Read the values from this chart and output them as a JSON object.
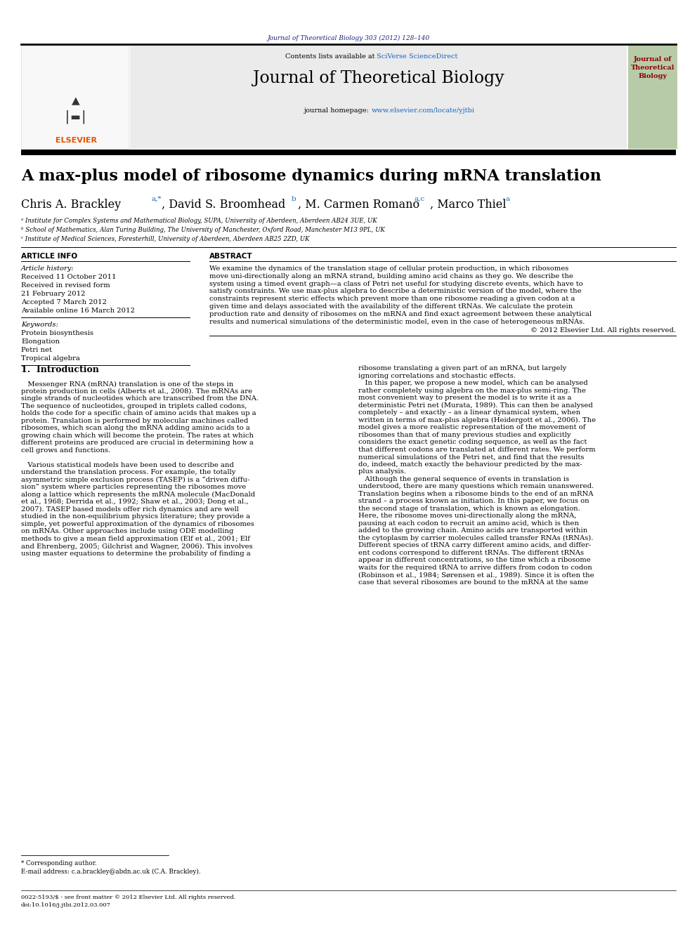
{
  "page_width": 9.92,
  "page_height": 13.23,
  "bg_color": "#ffffff",
  "journal_ref_text": "Journal of Theoretical Biology 303 (2012) 128–140",
  "journal_ref_color": "#1a237e",
  "link_color": "#1565c0",
  "journal_name": "Journal of Theoretical Biology",
  "journal_url": "www.elsevier.com/locate/yjtbi",
  "article_title": "A max-plus model of ribosome dynamics during mRNA translation",
  "affil_a": "ᵃ Institute for Complex Systems and Mathematical Biology, SUPA, University of Aberdeen, Aberdeen AB24 3UE, UK",
  "affil_b": "ᵇ School of Mathematics, Alan Turing Building, The University of Manchester, Oxford Road, Manchester M13 9PL, UK",
  "affil_c": "ᶜ Institute of Medical Sciences, Foresterhill, University of Aberdeen, Aberdeen AB25 2ZD, UK",
  "article_info_header": "ARTICLE INFO",
  "abstract_header": "ABSTRACT",
  "article_history_label": "Article history:",
  "received1": "Received 11 October 2011",
  "received2": "Received in revised form",
  "received2b": "21 February 2012",
  "accepted": "Accepted 7 March 2012",
  "available": "Available online 16 March 2012",
  "keywords_label": "Keywords:",
  "keywords": [
    "Protein biosynthesis",
    "Elongation",
    "Petri net",
    "Tropical algebra"
  ],
  "abstract_lines": [
    "We examine the dynamics of the translation stage of cellular protein production, in which ribosomes",
    "move uni-directionally along an mRNA strand, building amino acid chains as they go. We describe the",
    "system using a timed event graph—a class of Petri net useful for studying discrete events, which have to",
    "satisfy constraints. We use max-plus algebra to describe a deterministic version of the model, where the",
    "constraints represent steric effects which prevent more than one ribosome reading a given codon at a",
    "given time and delays associated with the availability of the different tRNAs. We calculate the protein",
    "production rate and density of ribosomes on the mRNA and find exact agreement between these analytical",
    "results and numerical simulations of the deterministic model, even in the case of heterogeneous mRNAs."
  ],
  "copyright_text": "© 2012 Elsevier Ltd. All rights reserved.",
  "section1_title": "1.  Introduction",
  "body_col1_lines": [
    "   Messenger RNA (mRNA) translation is one of the steps in",
    "protein production in cells (Alberts et al., 2008). The mRNAs are",
    "single strands of nucleotides which are transcribed from the DNA.",
    "The sequence of nucleotides, grouped in triplets called codons,",
    "holds the code for a specific chain of amino acids that makes up a",
    "protein. Translation is performed by molecular machines called",
    "ribosomes, which scan along the mRNA adding amino acids to a",
    "growing chain which will become the protein. The rates at which",
    "different proteins are produced are crucial in determining how a",
    "cell grows and functions.",
    "",
    "   Various statistical models have been used to describe and",
    "understand the translation process. For example, the totally",
    "asymmetric simple exclusion process (TASEP) is a “driven diffu-",
    "sion” system where particles representing the ribosomes move",
    "along a lattice which represents the mRNA molecule (MacDonald",
    "et al., 1968; Derrida et al., 1992; Shaw et al., 2003; Dong et al.,",
    "2007). TASEP based models offer rich dynamics and are well",
    "studied in the non-equilibrium physics literature; they provide a",
    "simple, yet powerful approximation of the dynamics of ribosomes",
    "on mRNAs. Other approaches include using ODE modelling",
    "methods to give a mean field approximation (Elf et al., 2001; Elf",
    "and Ehrenberg, 2005; Gilchrist and Wagner, 2006). This involves",
    "using master equations to determine the probability of finding a"
  ],
  "body_col2_lines": [
    "ribosome translating a given part of an mRNA, but largely",
    "ignoring correlations and stochastic effects.",
    "   In this paper, we propose a new model, which can be analysed",
    "rather completely using algebra on the max-plus semi-ring. The",
    "most convenient way to present the model is to write it as a",
    "deterministic Petri net (Murata, 1989). This can then be analysed",
    "completely – and exactly – as a linear dynamical system, when",
    "written in terms of max-plus algebra (Heidergott et al., 2006). The",
    "model gives a more realistic representation of the movement of",
    "ribosomes than that of many previous studies and explicitly",
    "considers the exact genetic coding sequence, as well as the fact",
    "that different codons are translated at different rates. We perform",
    "numerical simulations of the Petri net, and find that the results",
    "do, indeed, match exactly the behaviour predicted by the max-",
    "plus analysis.",
    "   Although the general sequence of events in translation is",
    "understood, there are many questions which remain unanswered.",
    "Translation begins when a ribosome binds to the end of an mRNA",
    "strand – a process known as initiation. In this paper, we focus on",
    "the second stage of translation, which is known as elongation.",
    "Here, the ribosome moves uni-directionally along the mRNA,",
    "pausing at each codon to recruit an amino acid, which is then",
    "added to the growing chain. Amino acids are transported within",
    "the cytoplasm by carrier molecules called transfer RNAs (tRNAs).",
    "Different species of tRNA carry different amino acids, and differ-",
    "ent codons correspond to different tRNAs. The different tRNAs",
    "appear in different concentrations, so the time which a ribosome",
    "waits for the required tRNA to arrive differs from codon to codon",
    "(Robinson et al., 1984; Sørensen et al., 1989). Since it is often the",
    "case that several ribosomes are bound to the mRNA at the same"
  ],
  "footnote_star": "* Corresponding author.",
  "footnote_email": "E-mail address: c.a.brackley@abdn.ac.uk (C.A. Brackley).",
  "issn_text": "0022-5193/$ - see front matter © 2012 Elsevier Ltd. All rights reserved.",
  "doi_text": "doi:10.1016/j.jtbi.2012.03.007",
  "elsevier_color": "#e65100",
  "text_color": "#000000"
}
